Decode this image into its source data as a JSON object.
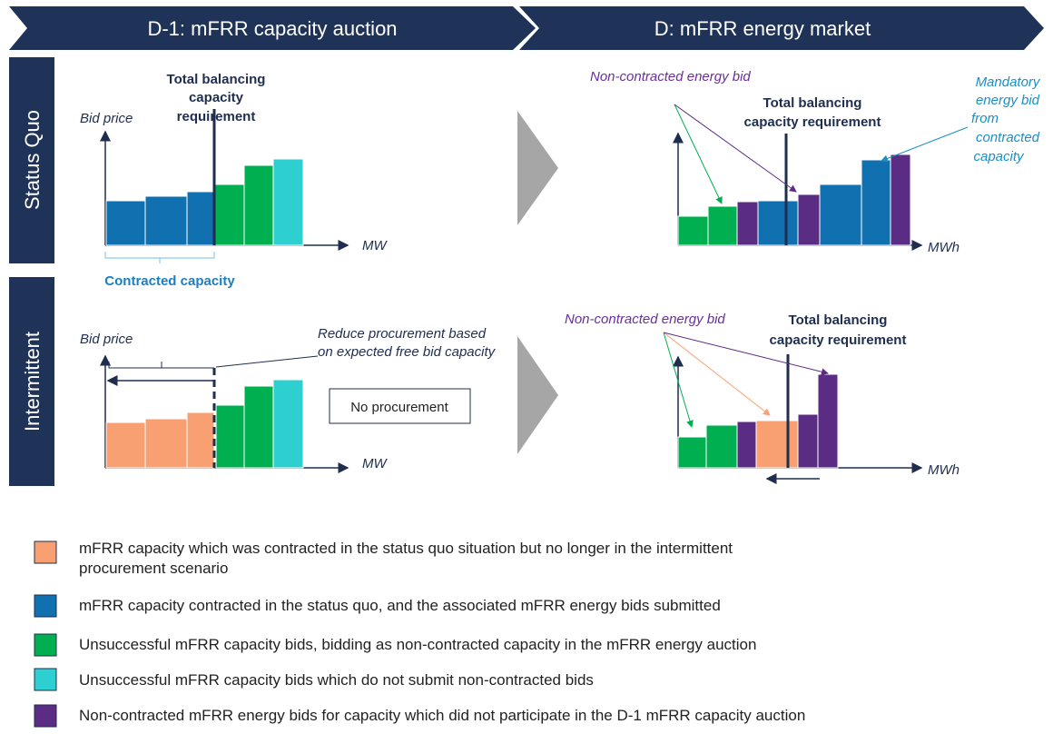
{
  "header": {
    "left": "D-1: mFRR capacity auction",
    "right": "D: mFRR energy market"
  },
  "rows": [
    "Status Quo",
    "Intermittent"
  ],
  "status_quo_capacity": {
    "y_label": "Bid price",
    "x_label": "MW",
    "requirement": [
      "Total balancing",
      "capacity",
      "requirement"
    ],
    "bracket": "Contracted capacity"
  },
  "intermittent_capacity": {
    "y_label": "Bid price",
    "x_label": "MW",
    "note": [
      "Reduce procurement based",
      "on expected free bid capacity"
    ],
    "box": "No procurement"
  },
  "status_quo_energy": {
    "x_label": "MWh",
    "requirement": [
      "Total balancing",
      "capacity requirement"
    ],
    "non_contracted": "Non-contracted energy bid",
    "mandatory": [
      "Mandatory",
      "energy bid",
      "from",
      "contracted",
      "capacity"
    ]
  },
  "intermittent_energy": {
    "x_label": "MWh",
    "requirement": [
      "Total balancing",
      "capacity requirement"
    ],
    "non_contracted": "Non-contracted energy bid"
  },
  "legend": [
    [
      "mFRR capacity which was contracted in the status quo situation but no longer in the intermittent",
      "procurement scenario"
    ],
    [
      "mFRR capacity contracted in the status quo, and the associated mFRR energy bids submitted"
    ],
    [
      "Unsuccessful mFRR capacity bids, bidding as non-contracted capacity in the mFRR energy auction"
    ],
    [
      "Unsuccessful mFRR capacity bids which do not submit non-contracted bids"
    ],
    [
      "Non-contracted mFRR energy bids for capacity which did not participate in the D-1 mFRR capacity auction"
    ]
  ]
}
